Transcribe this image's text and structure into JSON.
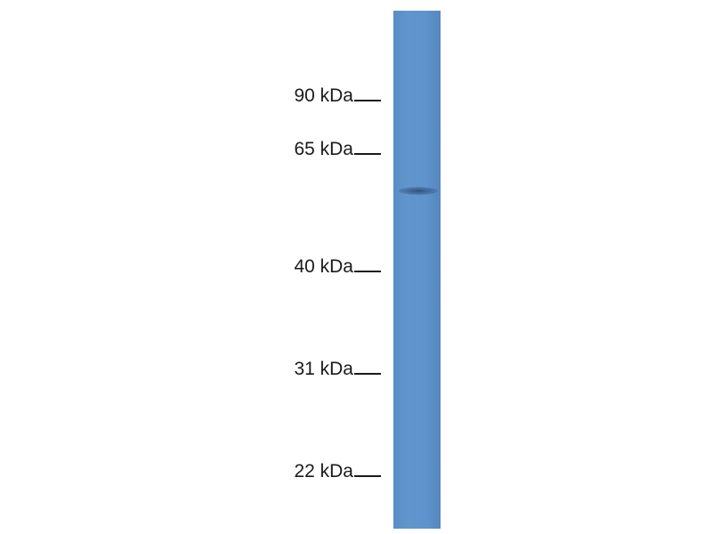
{
  "markers": [
    {
      "label": "90 kDa",
      "kda": 90
    },
    {
      "label": "65 kDa",
      "kda": 65
    },
    {
      "label": "40 kDa",
      "kda": 40
    },
    {
      "label": "31 kDa",
      "kda": 31
    },
    {
      "label": "22 kDa",
      "kda": 22
    }
  ],
  "lane": {
    "color": "#5e93cb"
  },
  "bands": [
    {
      "approx_kda": 57,
      "color": "#34557f"
    }
  ]
}
